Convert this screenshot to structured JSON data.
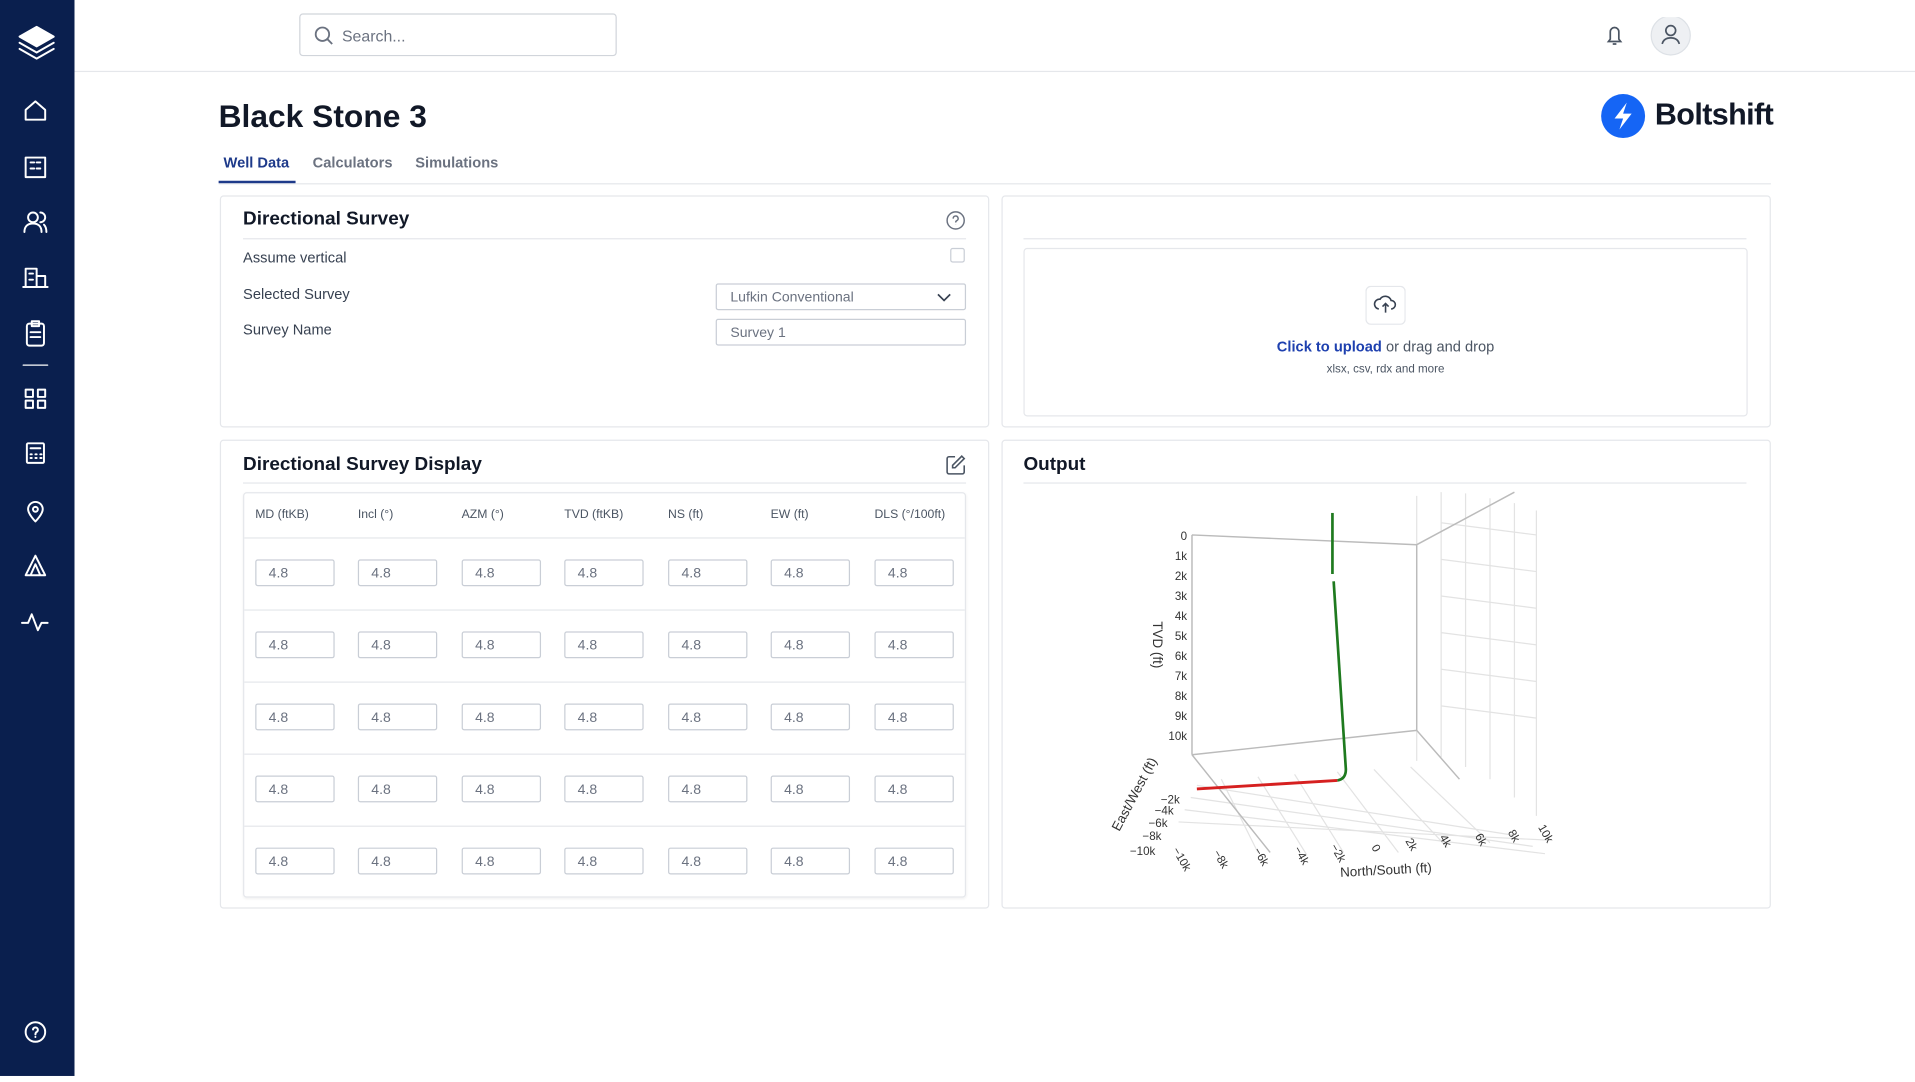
{
  "search": {
    "placeholder": "Search..."
  },
  "header": {
    "title": "Black Stone 3",
    "brand": "Boltshift"
  },
  "tabs": [
    "Well Data",
    "Calculators",
    "Simulations"
  ],
  "survey": {
    "title": "Directional Survey",
    "fields": [
      {
        "label": "Assume vertical"
      },
      {
        "label": "Selected Survey",
        "value": "Lufkin Conventional"
      },
      {
        "label": "Survey Name",
        "value": "Survey 1"
      }
    ]
  },
  "upload": {
    "link": "Click to upload",
    "text": "or drag and drop",
    "hint": "xlsx, csv, rdx and more"
  },
  "display": {
    "title": "Directional Survey Display",
    "columns": [
      "MD (ftKB)",
      "Incl (°)",
      "AZM (°)",
      "TVD (ftKB)",
      "NS (ft)",
      "EW (ft)",
      "DLS (°/100ft)"
    ],
    "rows": [
      [
        "4.8",
        "4.8",
        "4.8",
        "4.8",
        "4.8",
        "4.8",
        "4.8"
      ],
      [
        "4.8",
        "4.8",
        "4.8",
        "4.8",
        "4.8",
        "4.8",
        "4.8"
      ],
      [
        "4.8",
        "4.8",
        "4.8",
        "4.8",
        "4.8",
        "4.8",
        "4.8"
      ],
      [
        "4.8",
        "4.8",
        "4.8",
        "4.8",
        "4.8",
        "4.8",
        "4.8"
      ],
      [
        "4.8",
        "4.8",
        "4.8",
        "4.8",
        "4.8",
        "4.8",
        "4.8"
      ]
    ]
  },
  "output": {
    "title": "Output",
    "plot": {
      "z_title": "TVD (ft)",
      "z_ticks": [
        "0",
        "1k",
        "2k",
        "3k",
        "4k",
        "5k",
        "6k",
        "7k",
        "8k",
        "9k",
        "10k"
      ],
      "x_title": "North/South (ft)",
      "x_ticks": [
        "−10k",
        "−8k",
        "−6k",
        "−4k",
        "−2k",
        "0",
        "2k",
        "4k",
        "6k",
        "8k",
        "10k"
      ],
      "y_title": "East/West (ft)",
      "y_ticks": [
        "−10k",
        "−8k",
        "−6k",
        "−4k",
        "−2k"
      ]
    }
  }
}
